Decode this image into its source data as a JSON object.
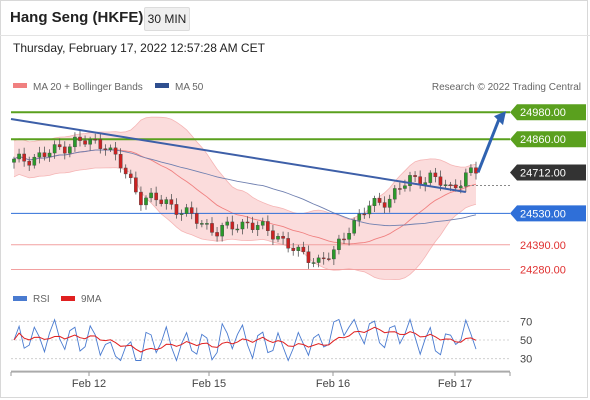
{
  "header": {
    "title": "Hang Seng (HKFE)",
    "interval": "30 MIN"
  },
  "datetime": "Thursday, February 17, 2022 12:57:28 AM CET",
  "legend": {
    "ma20": {
      "label": "MA 20 + Bollinger Bands",
      "color": "#f08080"
    },
    "ma50": {
      "label": "MA 50",
      "color": "#2f4f8f"
    },
    "credit": "Research © 2022 Trading Central"
  },
  "rsi_legend": {
    "rsi": {
      "label": "RSI",
      "color": "#4a7bd0"
    },
    "ma": {
      "label": "9MA",
      "color": "#e02020"
    }
  },
  "chart_data": [
    {
      "type": "candlestick",
      "title": "",
      "ylim": [
        24220,
        25030
      ],
      "x_ticks": [
        "Feb 12",
        "Feb 15",
        "Feb 16",
        "Feb 17"
      ],
      "levels": [
        {
          "value": 24980.0,
          "label": "24980.00",
          "style": "resistance",
          "color": "#5aa01e"
        },
        {
          "value": 24860.0,
          "label": "24860.00",
          "style": "resistance",
          "color": "#5aa01e"
        },
        {
          "value": 24712.0,
          "label": "24712.00",
          "style": "last-price",
          "color": "#333333"
        },
        {
          "value": 24530.0,
          "label": "24530.00",
          "style": "pivot",
          "color": "#2f6fd8"
        },
        {
          "value": 24390.0,
          "label": "24390.00",
          "style": "support",
          "color": "#e03030"
        },
        {
          "value": 24280.0,
          "label": "24280.00",
          "style": "support",
          "color": "#e03030"
        }
      ]
    },
    {
      "type": "line",
      "title": "RSI",
      "ylim": [
        20,
        80
      ],
      "y_ticks": [
        70,
        50,
        30
      ],
      "x_ticks": [
        "Feb 12",
        "Feb 15",
        "Feb 16",
        "Feb 17"
      ]
    }
  ]
}
